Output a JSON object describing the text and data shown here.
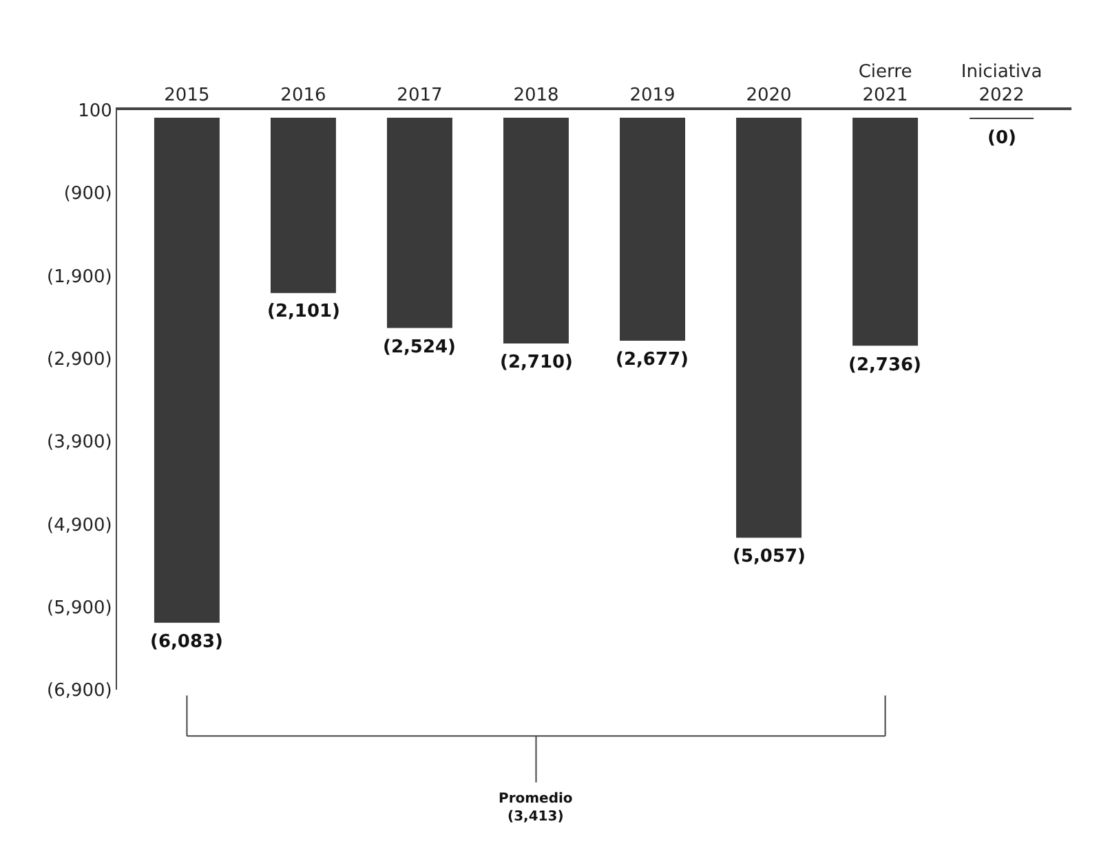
{
  "chart_data": {
    "type": "bar",
    "categories": [
      "2015",
      "2016",
      "2017",
      "2018",
      "2019",
      "2020",
      "Cierre\n2021",
      "Iniciativa\n2022"
    ],
    "values": [
      -6083,
      -2101,
      -2524,
      -2710,
      -2677,
      -5057,
      -2736,
      0
    ],
    "value_labels": [
      "(6,083)",
      "(2,101)",
      "(2,524)",
      "(2,710)",
      "(2,677)",
      "(5,057)",
      "(2,736)",
      "(0)"
    ],
    "color": "#3a3a3a",
    "ylim": [
      -6900,
      100
    ],
    "yticks": [
      100,
      {
        "value": -900,
        "label": "(900)"
      },
      {
        "value": -1900,
        "label": "(1,900)"
      },
      {
        "value": -2900,
        "label": "(2,900)"
      },
      {
        "value": -3900,
        "label": "(3,900)"
      },
      {
        "value": -4900,
        "label": "(4,900)"
      },
      {
        "value": -5900,
        "label": "(5,900)"
      },
      {
        "value": -6900,
        "label": "(6,900)"
      }
    ],
    "annotations": [
      "Promedio\n(3,413)"
    ]
  }
}
